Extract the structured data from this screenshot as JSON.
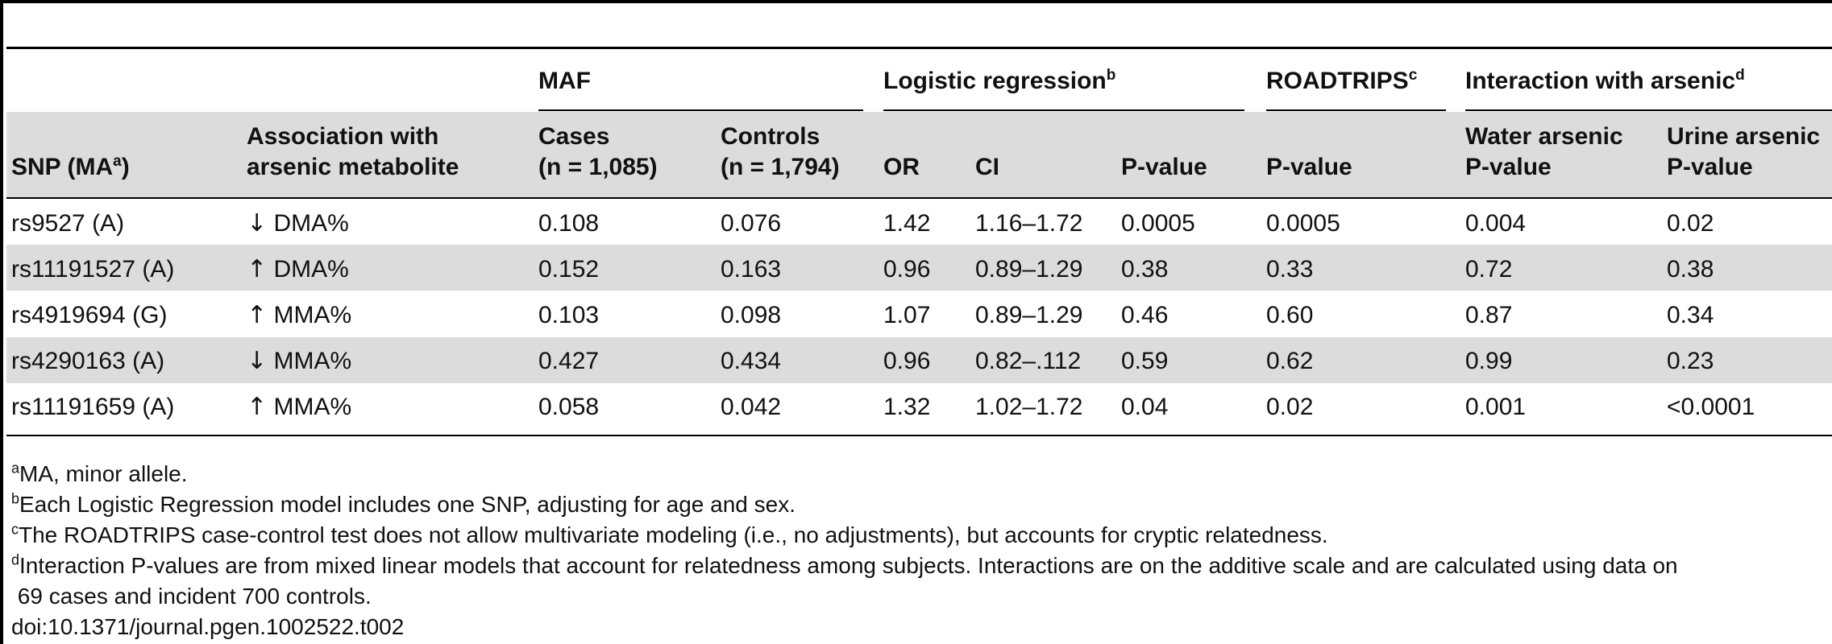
{
  "table": {
    "group_headers": {
      "maf": "MAF",
      "logistic": "Logistic regression",
      "logistic_sup": "b",
      "roadtrips": "ROADTRIPS",
      "roadtrips_sup": "c",
      "interaction": "Interaction with arsenic",
      "interaction_sup": "d"
    },
    "col_headers": {
      "snp": "SNP (MA",
      "snp_sup": "a",
      "snp_close": ")",
      "assoc_line1": "Association with",
      "assoc_line2": "arsenic metabolite",
      "cases_line1": "Cases",
      "cases_line2": "(n = 1,085)",
      "controls_line1": "Controls",
      "controls_line2": "(n = 1,794)",
      "or": "OR",
      "ci": "CI",
      "pvalue": "P-value",
      "roadtrips_p": "P-value",
      "water_line1": "Water arsenic",
      "water_line2": "P-value",
      "urine_line1": "Urine arsenic",
      "urine_line2": "P-value"
    },
    "rows": [
      {
        "snp": "rs9527 (A)",
        "arrow": "↓",
        "metabolite": "DMA%",
        "cases": "0.108",
        "controls": "0.076",
        "or": "1.42",
        "ci": "1.16–1.72",
        "p": "0.0005",
        "roadtrips": "0.0005",
        "water": "0.004",
        "urine": "0.02"
      },
      {
        "snp": "rs11191527 (A)",
        "arrow": "↑",
        "metabolite": "DMA%",
        "cases": "0.152",
        "controls": "0.163",
        "or": "0.96",
        "ci": "0.89–1.29",
        "p": "0.38",
        "roadtrips": "0.33",
        "water": "0.72",
        "urine": "0.38"
      },
      {
        "snp": "rs4919694 (G)",
        "arrow": "↑",
        "metabolite": "MMA%",
        "cases": "0.103",
        "controls": "0.098",
        "or": "1.07",
        "ci": "0.89–1.29",
        "p": "0.46",
        "roadtrips": "0.60",
        "water": "0.87",
        "urine": "0.34"
      },
      {
        "snp": "rs4290163 (A)",
        "arrow": "↓",
        "metabolite": "MMA%",
        "cases": "0.427",
        "controls": "0.434",
        "or": "0.96",
        "ci": "0.82–.112",
        "p": "0.59",
        "roadtrips": "0.62",
        "water": "0.99",
        "urine": "0.23"
      },
      {
        "snp": "rs11191659 (A)",
        "arrow": "↑",
        "metabolite": "MMA%",
        "cases": "0.058",
        "controls": "0.042",
        "or": "1.32",
        "ci": "1.02–1.72",
        "p": "0.04",
        "roadtrips": "0.02",
        "water": "0.001",
        "urine": "<0.0001"
      }
    ]
  },
  "footnotes": [
    {
      "mark": "a",
      "text": "MA, minor allele."
    },
    {
      "mark": "b",
      "text": "Each Logistic Regression model includes one SNP, adjusting for age and sex."
    },
    {
      "mark": "c",
      "text": "The ROADTRIPS case-control test does not allow multivariate modeling (i.e., no adjustments), but accounts for cryptic relatedness."
    },
    {
      "mark": "d",
      "text": "Interaction P-values are from mixed linear models that account for relatedness among subjects. Interactions are on the additive scale and are calculated using data on"
    },
    {
      "mark": "",
      "text": " 69 cases and incident 700 controls."
    }
  ],
  "doi": "doi:10.1371/journal.pgen.1002522.t002"
}
